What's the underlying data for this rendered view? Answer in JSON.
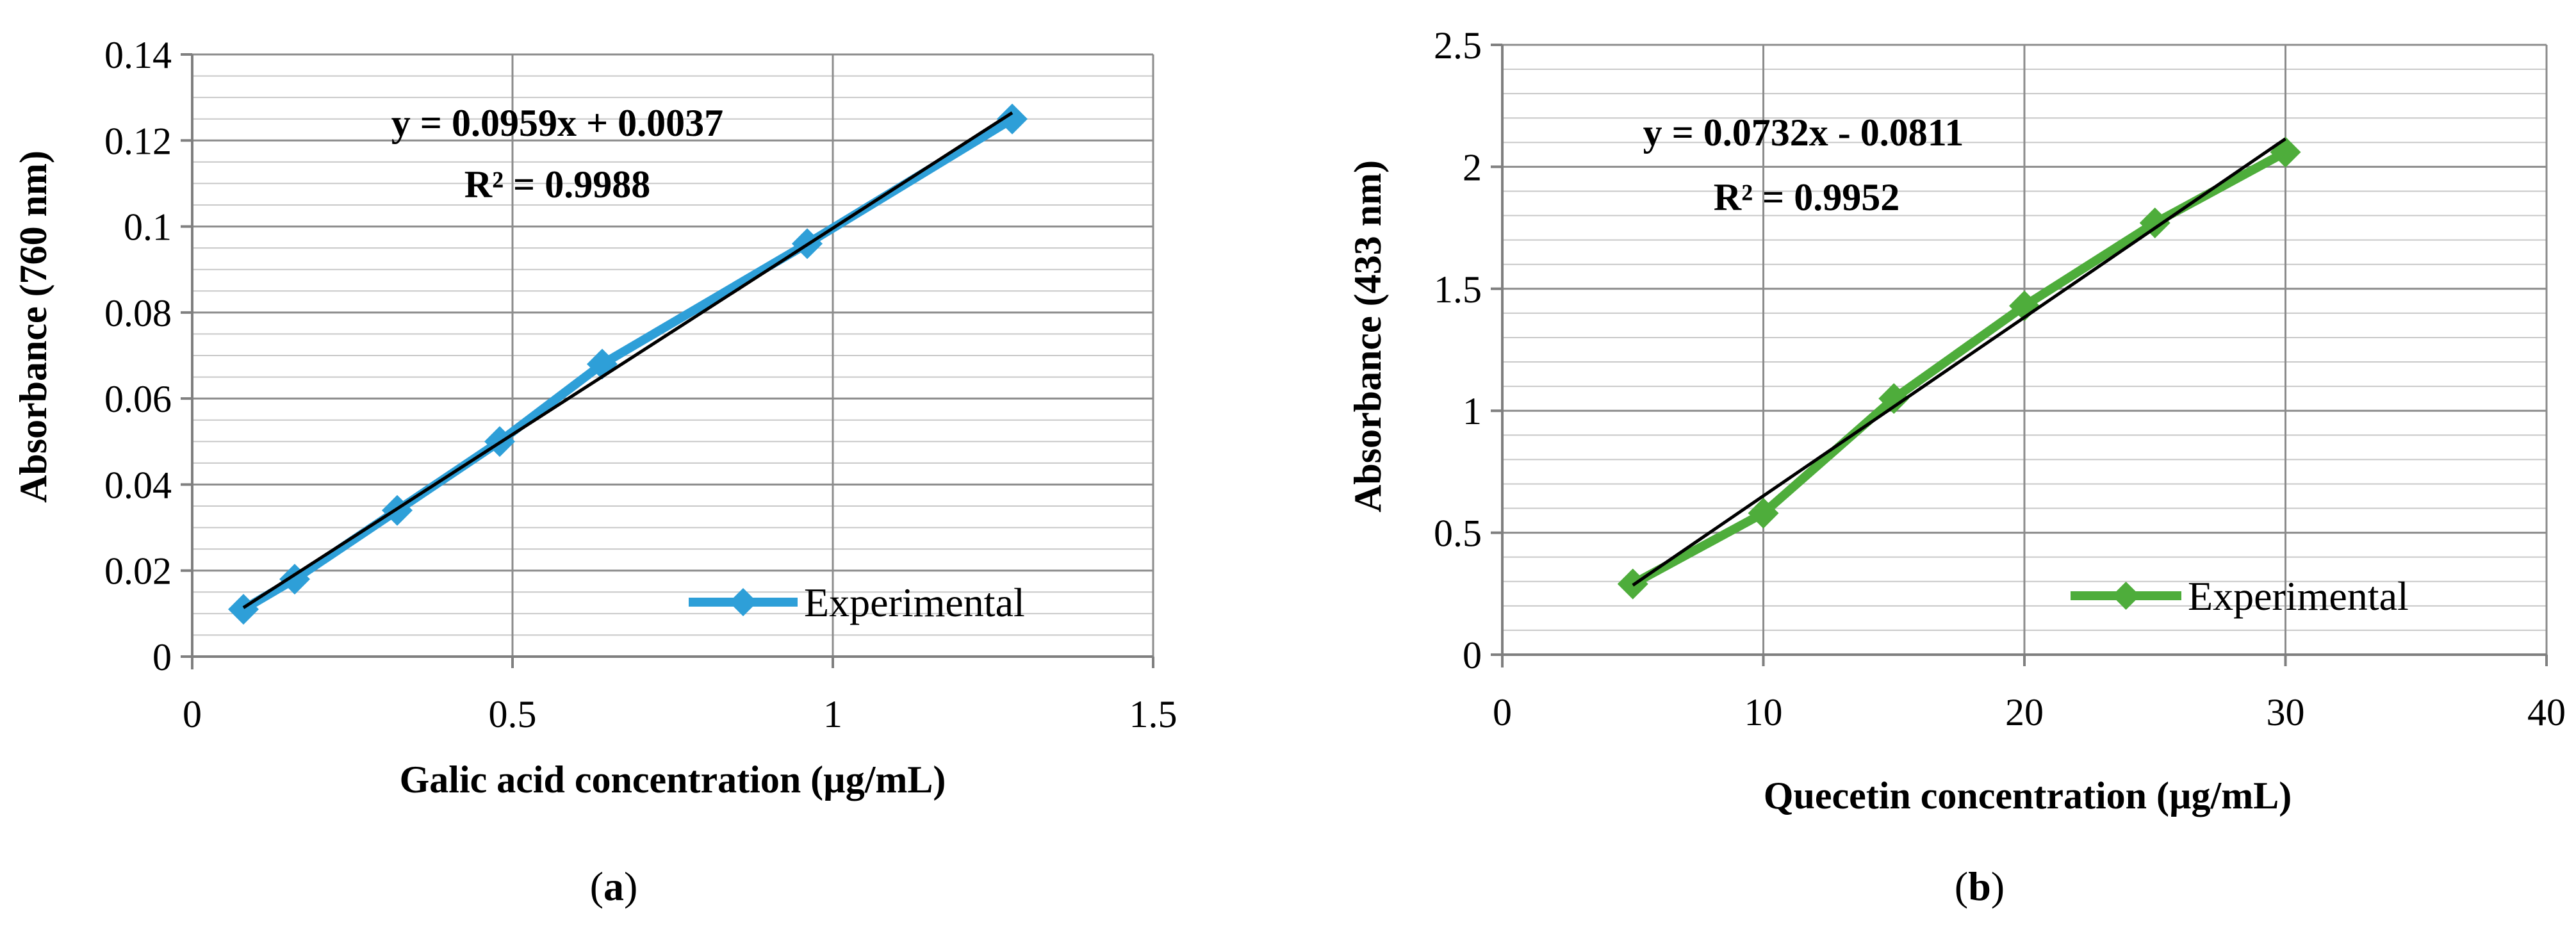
{
  "chart_data": [
    {
      "type": "line",
      "panel_label": "(a)",
      "panel_letter": "a",
      "xlabel": "Galic acid concentration (µg/mL)",
      "ylabel": "Absorbance (760 nm)",
      "xlim": [
        0,
        1.5
      ],
      "ylim": [
        0,
        0.14
      ],
      "x_ticks": [
        0,
        0.5,
        1,
        1.5
      ],
      "x_tick_labels": [
        "0",
        "0.5",
        "1",
        "1.5"
      ],
      "y_ticks": [
        0,
        0.02,
        0.04,
        0.06,
        0.08,
        0.1,
        0.12,
        0.14
      ],
      "y_tick_labels": [
        "0",
        "0.02",
        "0.04",
        "0.06",
        "0.08",
        "0.1",
        "0.12",
        "0.14"
      ],
      "minor_grid_step": 0.005,
      "series": [
        {
          "name": "Experimental",
          "color": "#2E9FD8",
          "marker": "diamond",
          "x": [
            0.08,
            0.16,
            0.32,
            0.48,
            0.64,
            0.96,
            1.28
          ],
          "y": [
            0.011,
            0.018,
            0.034,
            0.05,
            0.068,
            0.096,
            0.125
          ]
        }
      ],
      "trendline": {
        "slope": 0.0959,
        "intercept": 0.0037,
        "x_range": [
          0.08,
          1.28
        ],
        "color": "#000000"
      },
      "equation": "y = 0.0959x + 0.0037",
      "r_squared": "R² = 0.9988",
      "legend_position": "bottom-right"
    },
    {
      "type": "line",
      "panel_label": "(b)",
      "panel_letter": "b",
      "xlabel": "Quecetin concentration (µg/mL)",
      "ylabel": "Absorbance (433 nm)",
      "xlim": [
        0,
        40
      ],
      "ylim": [
        0,
        2.5
      ],
      "x_ticks": [
        0,
        10,
        20,
        30,
        40
      ],
      "x_tick_labels": [
        "0",
        "10",
        "20",
        "30",
        "40"
      ],
      "y_ticks": [
        0,
        0.5,
        1,
        1.5,
        2,
        2.5
      ],
      "y_tick_labels": [
        "0",
        "0.5",
        "1",
        "1.5",
        "2",
        "2.5"
      ],
      "minor_grid_step": 0.1,
      "series": [
        {
          "name": "Experimental",
          "color": "#4EAD3B",
          "marker": "diamond",
          "x": [
            5,
            10,
            15,
            20,
            25,
            30
          ],
          "y": [
            0.29,
            0.58,
            1.05,
            1.43,
            1.77,
            2.06
          ]
        }
      ],
      "trendline": {
        "slope": 0.0732,
        "intercept": -0.0811,
        "x_range": [
          5,
          30
        ],
        "color": "#000000"
      },
      "equation": "y = 0.0732x - 0.0811",
      "r_squared": "R² = 0.9952",
      "legend_position": "bottom-right"
    }
  ]
}
